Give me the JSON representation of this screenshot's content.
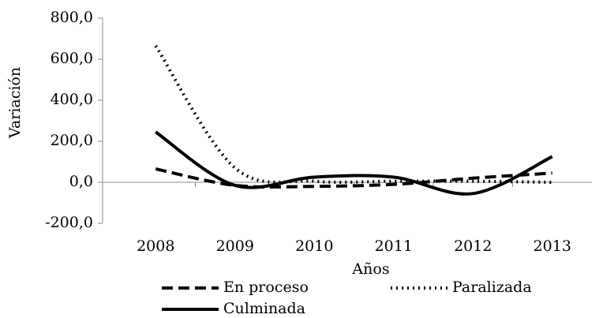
{
  "chart_data": {
    "type": "line",
    "categories": [
      "2008",
      "2009",
      "2010",
      "2011",
      "2012",
      "2013"
    ],
    "x_label": "Años",
    "y_label": "Variación",
    "ylim": [
      -200,
      800
    ],
    "yticks": [
      {
        "value": -200,
        "label": "-200,0"
      },
      {
        "value": 0,
        "label": "0,0"
      },
      {
        "value": 200,
        "label": "200,0"
      },
      {
        "value": 400,
        "label": "400,0"
      },
      {
        "value": 600,
        "label": "600,0"
      },
      {
        "value": 800,
        "label": "800,0"
      }
    ],
    "smooth": true,
    "legend": "bottom",
    "series": [
      {
        "name": "En proceso",
        "color": "#000000",
        "dash": "dashed",
        "values": [
          65,
          -15,
          -20,
          -10,
          20,
          45
        ]
      },
      {
        "name": "Paralizada",
        "color": "#000000",
        "dash": "dotted",
        "values": [
          665,
          70,
          5,
          5,
          5,
          0
        ]
      },
      {
        "name": "Culminada",
        "color": "#000000",
        "dash": "solid",
        "values": [
          245,
          -15,
          25,
          25,
          -55,
          125
        ]
      }
    ]
  }
}
